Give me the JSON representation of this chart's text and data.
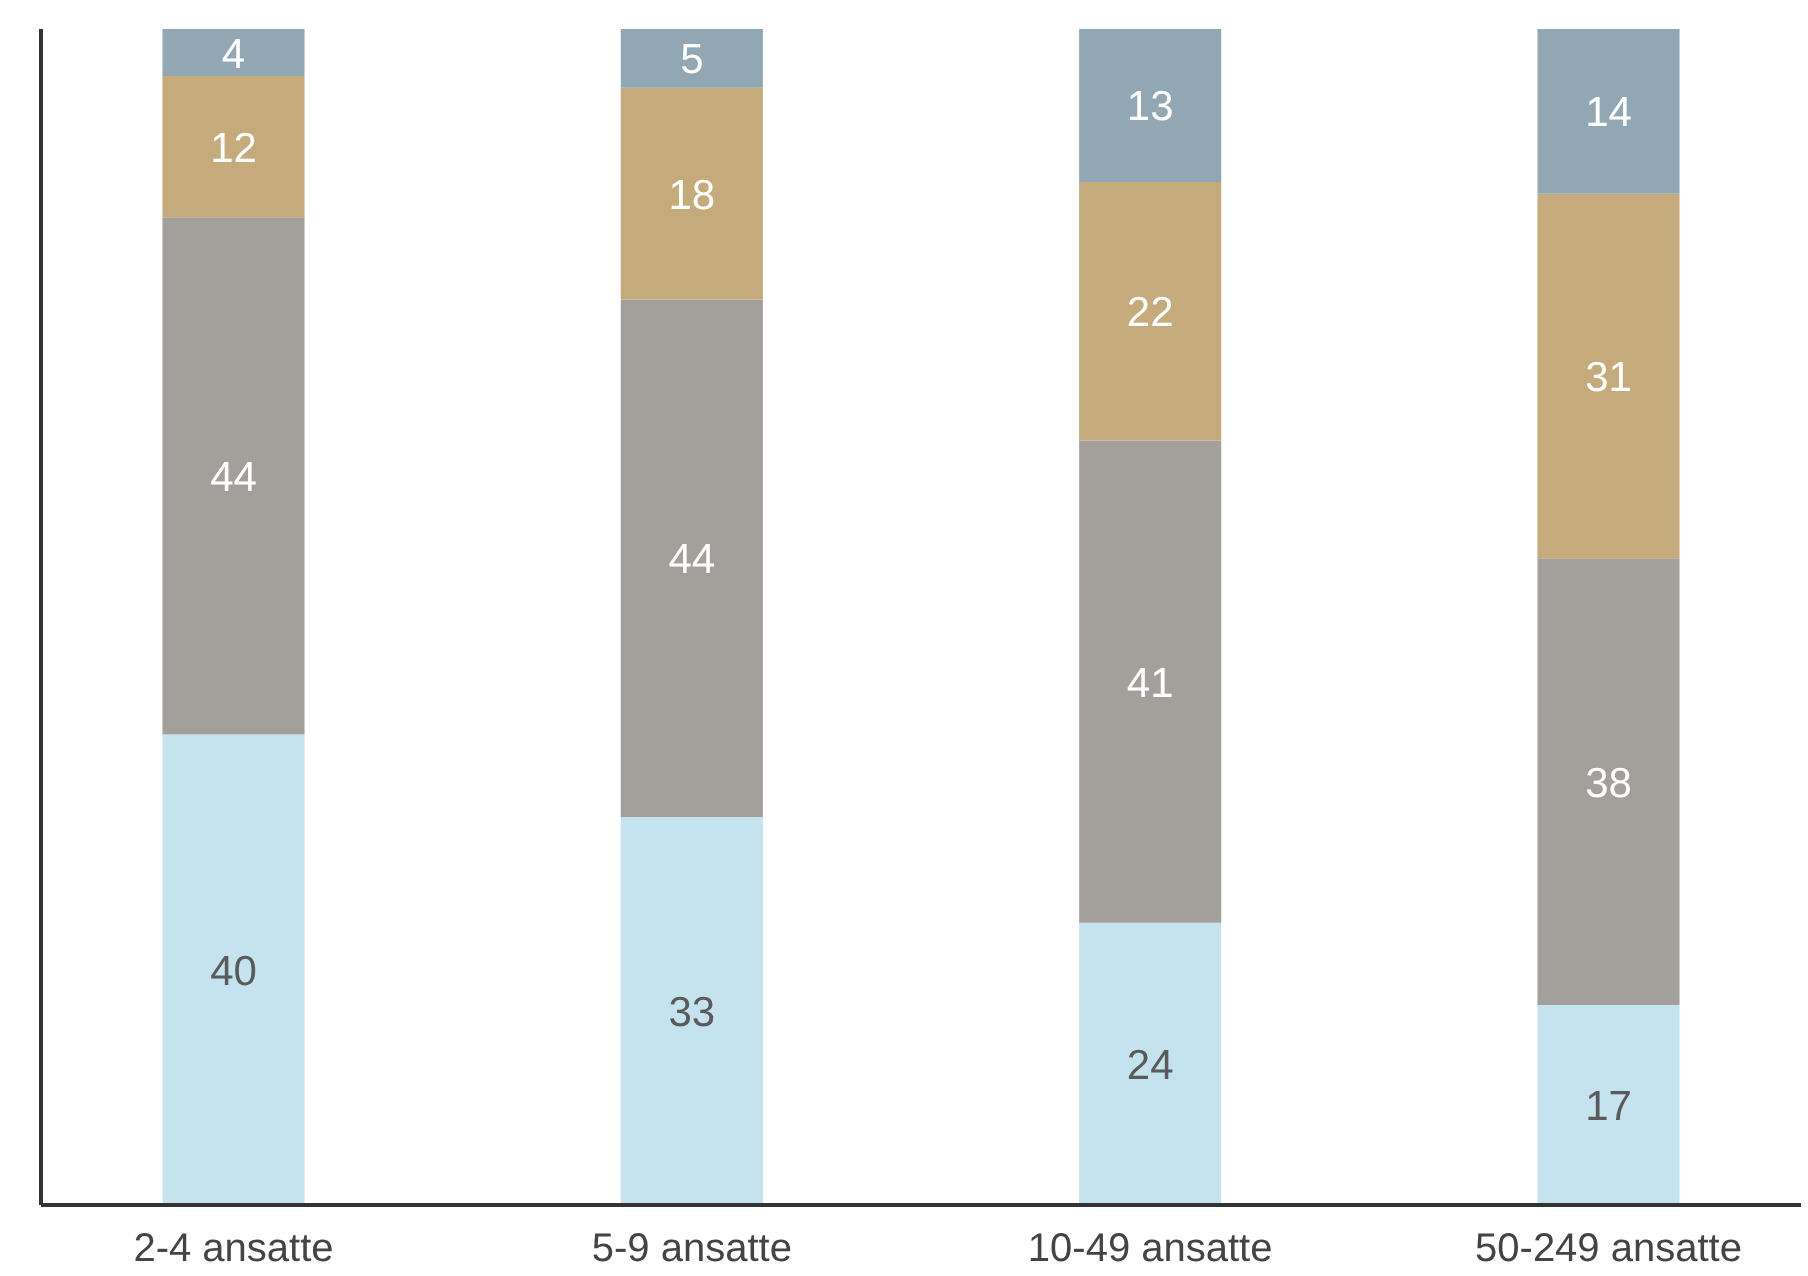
{
  "chart_data": {
    "type": "bar",
    "stacked": true,
    "data_labels": true,
    "categories": [
      "2-4 ansatte",
      "5-9 ansatte",
      "10-49 ansatte",
      "50-249 ansatte"
    ],
    "series": [
      {
        "color": "#c5e3ee",
        "values": [
          40,
          33,
          24,
          17
        ]
      },
      {
        "color": "#a3a09b",
        "values": [
          44,
          44,
          41,
          38
        ]
      },
      {
        "color": "#c5aa7b",
        "values": [
          12,
          18,
          22,
          31
        ]
      },
      {
        "color": "#91a8b4",
        "values": [
          4,
          5,
          13,
          14
        ]
      }
    ]
  }
}
